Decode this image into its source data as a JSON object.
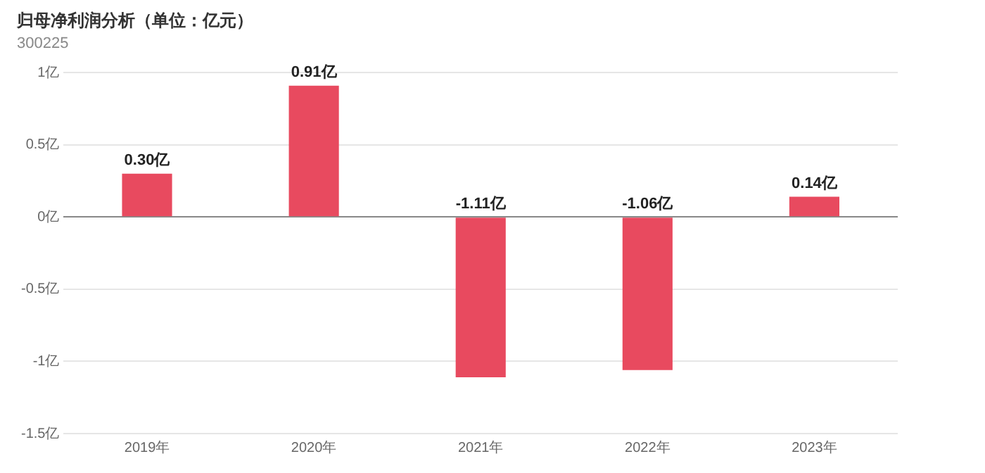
{
  "chart_data": {
    "type": "bar",
    "title": "归母净利润分析（单位：亿元）",
    "subtitle": "300225",
    "categories": [
      "2019年",
      "2020年",
      "2021年",
      "2022年",
      "2023年"
    ],
    "values": [
      0.3,
      0.91,
      -1.11,
      -1.06,
      0.14
    ],
    "color": "#e84a5f",
    "value_labels": [
      "0.30亿",
      "0.91亿",
      "-1.11亿",
      "-1.06亿",
      "0.14亿"
    ],
    "ylim": [
      -1.5,
      1
    ],
    "yticks": [
      {
        "value": -1.5,
        "label": "-1.5亿"
      },
      {
        "value": -1,
        "label": "-1亿"
      },
      {
        "value": -0.5,
        "label": "-0.5亿"
      },
      {
        "value": 0,
        "label": "0亿"
      },
      {
        "value": 0.5,
        "label": "0.5亿"
      },
      {
        "value": 1,
        "label": "1亿"
      }
    ],
    "grid": "y",
    "legend": false
  }
}
